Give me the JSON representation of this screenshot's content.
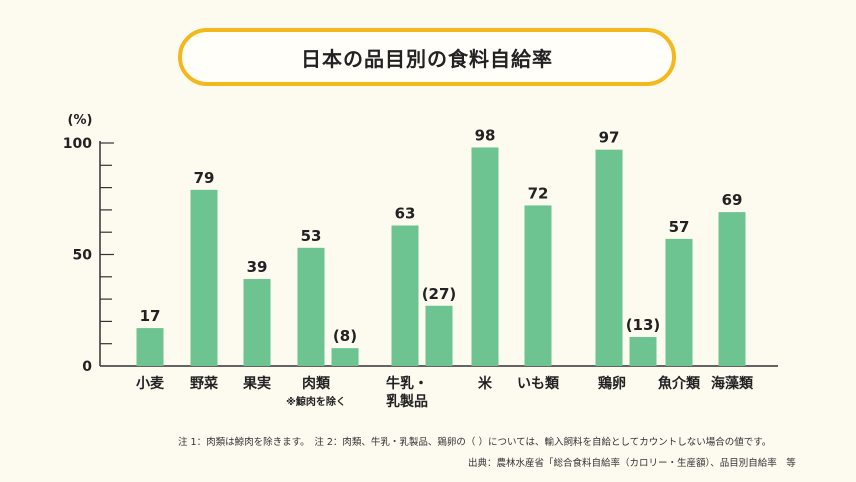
{
  "title": "日本の品目別の食料自給率",
  "colors": {
    "bar": "#6dc491",
    "accent": "#f5b81c",
    "axis": "#333333"
  },
  "chart_data": {
    "type": "bar",
    "ylabel": "(%)",
    "ylim": [
      0,
      100
    ],
    "yticks": [
      "0",
      "50",
      "100"
    ],
    "groups": [
      {
        "label": [
          "小麦"
        ],
        "bars": [
          {
            "value": 17,
            "label": "17"
          }
        ]
      },
      {
        "label": [
          "野菜"
        ],
        "bars": [
          {
            "value": 79,
            "label": "79"
          }
        ]
      },
      {
        "label": [
          "果実"
        ],
        "bars": [
          {
            "value": 39,
            "label": "39"
          }
        ]
      },
      {
        "label": [
          "肉類"
        ],
        "sublabel": "※鯨肉を除く",
        "bars": [
          {
            "value": 53,
            "label": "53"
          },
          {
            "value": 8,
            "label": "(8)"
          }
        ]
      },
      {
        "label": [
          "牛乳・",
          "乳製品"
        ],
        "bars": [
          {
            "value": 63,
            "label": "63"
          },
          {
            "value": 27,
            "label": "(27)"
          }
        ]
      },
      {
        "label": [
          "米"
        ],
        "bars": [
          {
            "value": 98,
            "label": "98"
          }
        ]
      },
      {
        "label": [
          "いも類"
        ],
        "bars": [
          {
            "value": 72,
            "label": "72"
          }
        ]
      },
      {
        "label": [
          "鶏卵"
        ],
        "bars": [
          {
            "value": 97,
            "label": "97"
          },
          {
            "value": 13,
            "label": "(13)"
          }
        ]
      },
      {
        "label": [
          "魚介類"
        ],
        "bars": [
          {
            "value": 57,
            "label": "57"
          }
        ]
      },
      {
        "label": [
          "海藻類"
        ],
        "bars": [
          {
            "value": 69,
            "label": "69"
          }
        ]
      }
    ]
  },
  "notes": {
    "note1": "注 1：肉類は鯨肉を除きます。　注 2：肉類、牛乳・乳製品、鶏卵の（ ）については、輸入飼料を自給としてカウントしない場合の値です。",
    "source": "出典：農林水産省「総合食料自給率（カロリー・生産額）、品目別自給率　等"
  }
}
